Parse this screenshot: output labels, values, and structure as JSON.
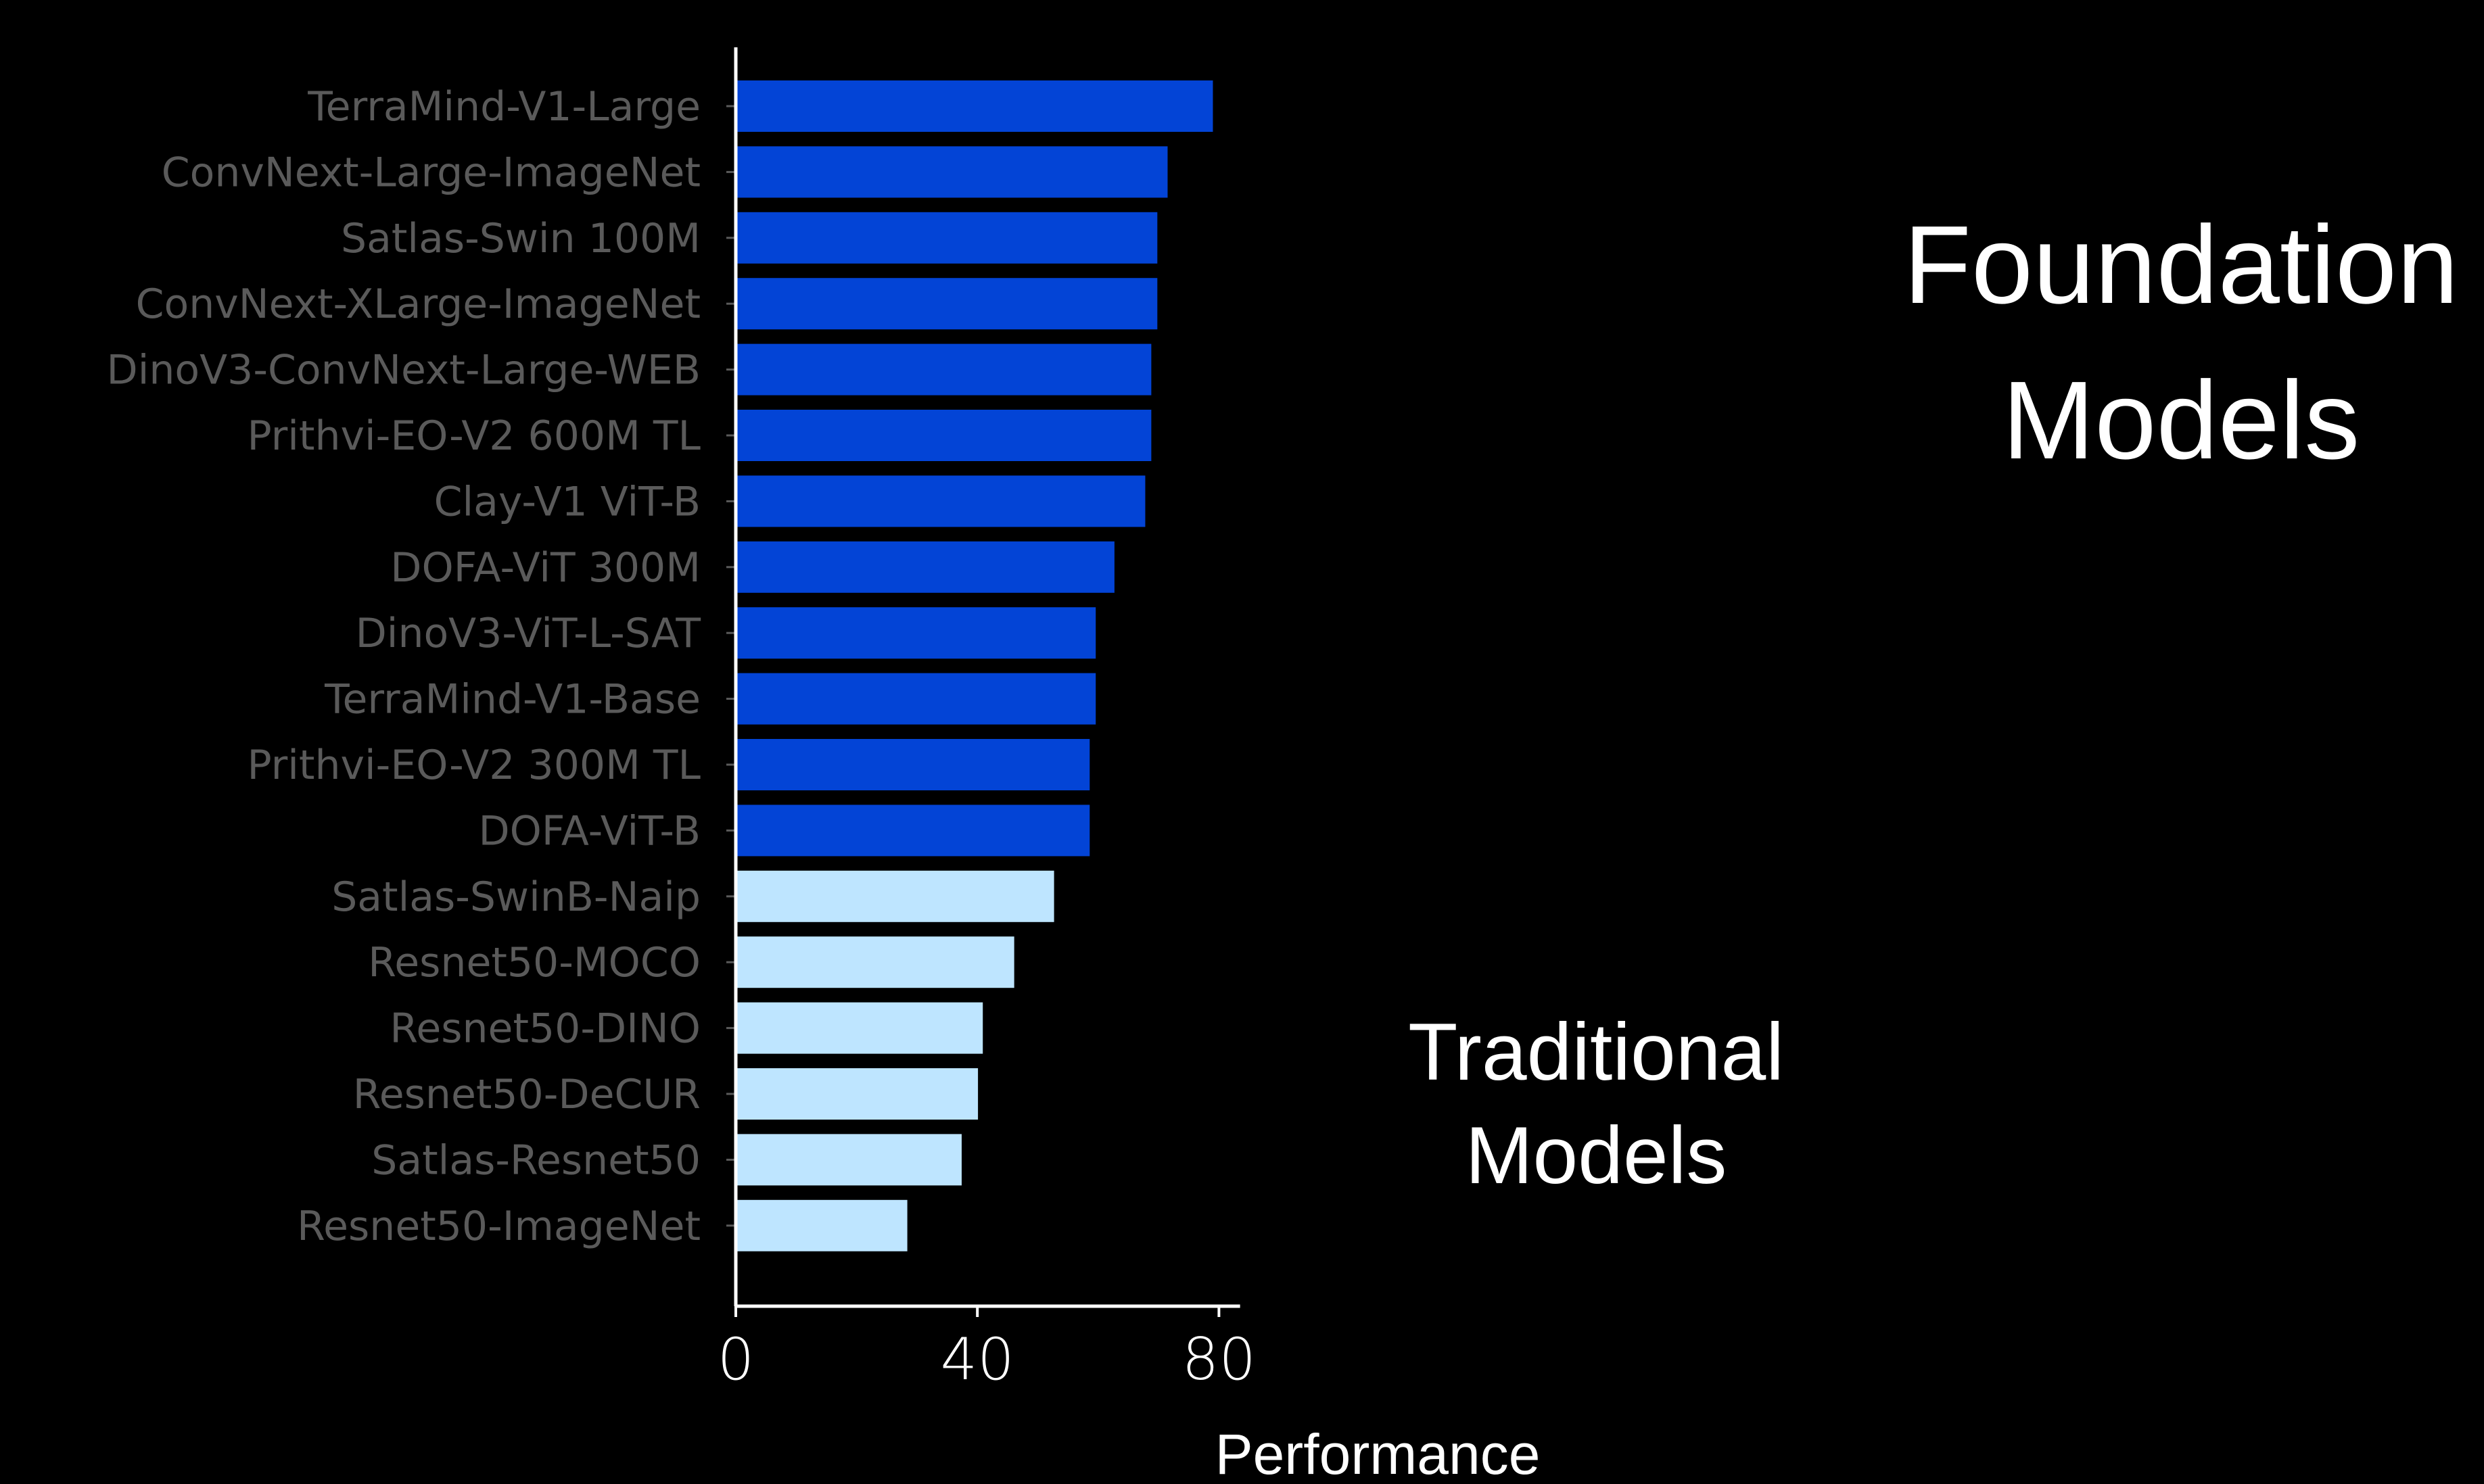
{
  "chart_data": {
    "type": "bar",
    "orientation": "horizontal",
    "categories": [
      "TerraMind-V1-Large",
      "ConvNext-Large-ImageNet",
      "Satlas-Swin 100M",
      "ConvNext-XLarge-ImageNet",
      "DinoV3-ConvNext-Large-WEB",
      "Prithvi-EO-V2 600M TL",
      "Clay-V1 ViT-B",
      "DOFA-ViT 300M",
      "DinoV3-ViT-L-SAT",
      "TerraMind-V1-Base",
      "Prithvi-EO-V2 300M TL",
      "DOFA-ViT-B",
      "Satlas-SwinB-Naip",
      "Resnet50-MOCO",
      "Resnet50-DINO",
      "Resnet50-DeCUR",
      "Satlas-Resnet50",
      "Resnet50-ImageNet"
    ],
    "values": [
      79,
      71.5,
      69.8,
      69.8,
      68.8,
      68.8,
      67.8,
      62.7,
      59.6,
      59.6,
      58.6,
      58.6,
      52.7,
      46.1,
      40.9,
      40.1,
      37.4,
      28.4
    ],
    "groups": [
      "foundation",
      "foundation",
      "foundation",
      "foundation",
      "foundation",
      "foundation",
      "foundation",
      "foundation",
      "foundation",
      "foundation",
      "foundation",
      "foundation",
      "traditional",
      "traditional",
      "traditional",
      "traditional",
      "traditional",
      "traditional"
    ],
    "colors": {
      "foundation": "#0344d6",
      "traditional": "#bee5ff",
      "background": "#000000",
      "axis": "#ffffff",
      "category_label": "#5a5a5a"
    },
    "xlabel": "Performance",
    "ylabel": "",
    "title": "",
    "xlim": [
      0,
      83.5
    ],
    "xticks": [
      0,
      40,
      80
    ],
    "grid": false,
    "annotations": [
      {
        "group": "foundation",
        "lines": [
          "Foundation",
          "Models"
        ]
      },
      {
        "group": "traditional",
        "lines": [
          "Traditional",
          "Models"
        ]
      }
    ]
  }
}
